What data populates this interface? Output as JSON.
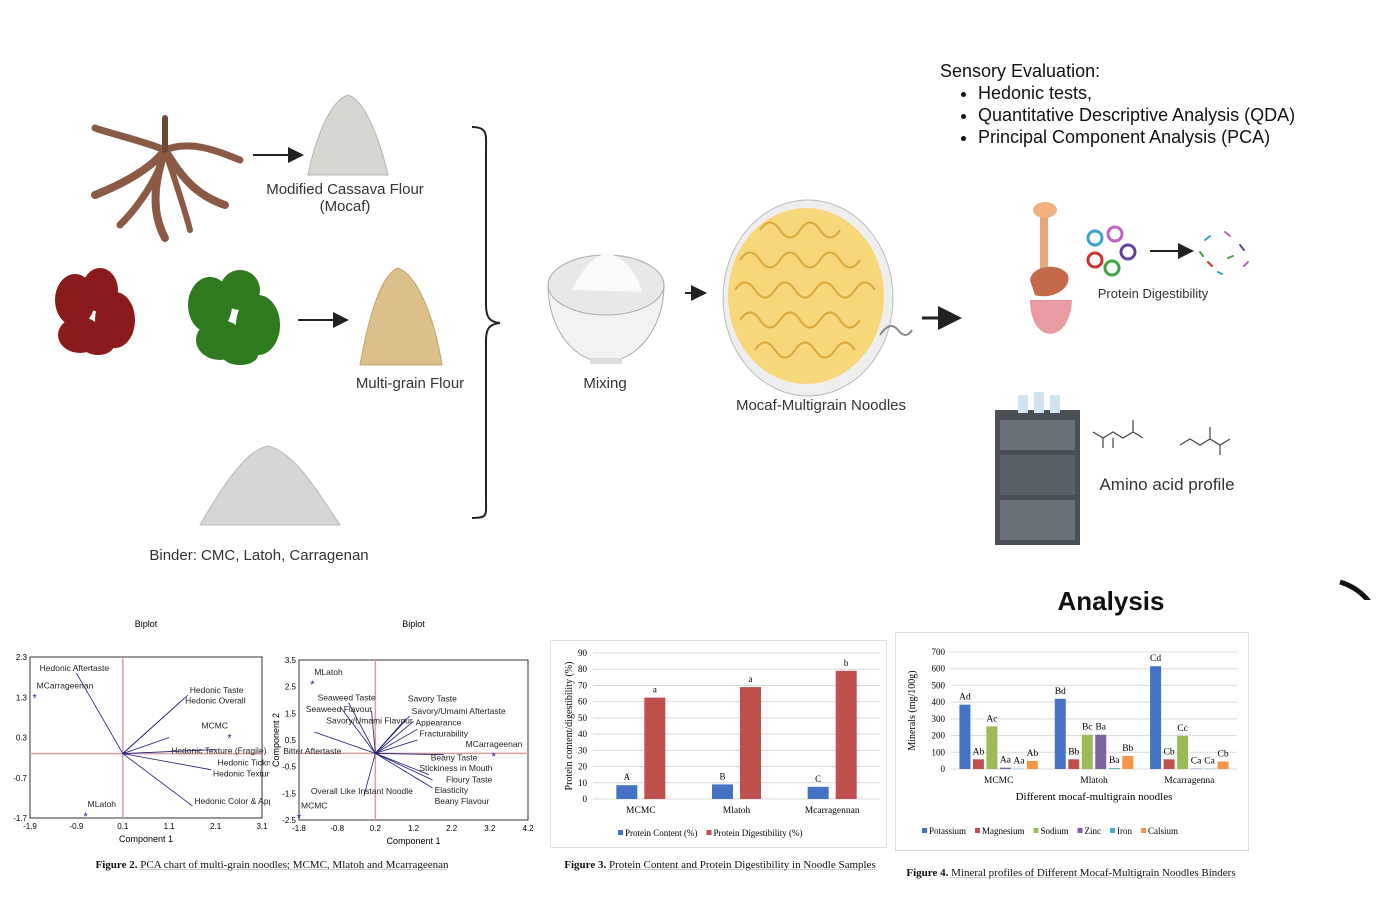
{
  "flow": {
    "mocaf_label_1": "Modified Cassava Flour",
    "mocaf_label_2": "(Mocaf)",
    "multigrain_label": "Multi-grain Flour",
    "binder_label": "Binder: CMC, Latoh, Carragenan",
    "mixing_label": "Mixing",
    "noodles_label": "Mocaf-Multigrain Noodles"
  },
  "sensory": {
    "title": "Sensory Evaluation:",
    "items": [
      "Hedonic tests,",
      "Quantitative Descriptive Analysis (QDA)",
      "Principal Component Analysis (PCA)"
    ]
  },
  "analysis_methods": {
    "protein_label": "Protein Digestibility",
    "amino_label": "Amino acid profile",
    "heading": "Analysis"
  },
  "colors": {
    "blue": "#4472c4",
    "red": "#c0504d",
    "green": "#9bbb59",
    "purple": "#8064a2",
    "teal": "#4bacc6",
    "orange": "#f79646",
    "pca_vector": "#1a1a7a",
    "pca_axis": "#d9a0a0"
  },
  "captions": {
    "fig2_label": "Figure 2.",
    "fig2_text": "PCA chart of multi-grain noodles; MCMC, Mlatoh and Mcarrageenan",
    "fig3_label": "Figure 3.",
    "fig3_text": "Protein Content and Protein Digestibility in Noodle Samples",
    "fig4_label": "Figure 4.",
    "fig4_text": "Mineral profiles of Different Mocaf-Multigrain Noodles Binders"
  },
  "chart_data": [
    {
      "type": "scatter",
      "title": "Biplot",
      "xlabel": "Component 1",
      "ylabel": "",
      "xlim": [
        -1.9,
        3.1
      ],
      "ylim": [
        -1.7,
        2.3
      ],
      "xticks": [
        "-1.9",
        "-0.9",
        "0.1",
        "1.1",
        "2.1",
        "3.1"
      ],
      "yticks": [
        "-1.7",
        "-0.7",
        "0.3",
        "1.3",
        "2.3"
      ],
      "origin": [
        0.1,
        -0.1
      ],
      "points": [
        {
          "label": "MCarrageenan",
          "x": -1.8,
          "y": 1.3
        },
        {
          "label": "MLatoh",
          "x": -0.7,
          "y": -1.65
        },
        {
          "label": "MCMC",
          "x": 2.4,
          "y": 0.3
        }
      ],
      "vectors": [
        {
          "label": "Hedonic Aftertaste",
          "x": -0.9,
          "y": 1.9
        },
        {
          "label": "Hedonic Taste",
          "x": 1.5,
          "y": 1.35
        },
        {
          "label": "Hedonic Overall",
          "x": 1.4,
          "y": 1.25
        },
        {
          "label": "Hedonic Texture (Fragile)",
          "x": 1.1,
          "y": 0.3
        },
        {
          "label": "Hedonic Tickness in Mouth",
          "x": 2.1,
          "y": 0.0
        },
        {
          "label": "Hedonic Texture (Elasticity)",
          "x": 2.0,
          "y": -0.5
        },
        {
          "label": "Hedonic Color & Appearance",
          "x": 1.6,
          "y": -1.4
        }
      ]
    },
    {
      "type": "scatter",
      "title": "Biplot",
      "xlabel": "Component 1",
      "ylabel": "Component 2",
      "xlim": [
        -1.8,
        4.2
      ],
      "ylim": [
        -2.5,
        3.5
      ],
      "xticks": [
        "-1.8",
        "-0.8",
        "0.2",
        "1.2",
        "2.2",
        "3.2",
        "4.2"
      ],
      "yticks": [
        "-2.5",
        "-1.5",
        "-0.5",
        "0.5",
        "1.5",
        "2.5",
        "3.5"
      ],
      "origin": [
        0.2,
        0.0
      ],
      "points": [
        {
          "label": "MLatoh",
          "x": -1.45,
          "y": 2.6
        },
        {
          "label": "MCMC",
          "x": -1.8,
          "y": -2.4
        },
        {
          "label": "MCarrageenan",
          "x": 3.3,
          "y": -0.1
        }
      ],
      "vectors": [
        {
          "label": "Seaweed Taste",
          "x": -0.5,
          "y": 1.9
        },
        {
          "label": "Seaweed Flavour",
          "x": -0.7,
          "y": 1.7
        },
        {
          "label": "Savory/Umami Flavour",
          "x": 0.1,
          "y": 1.6
        },
        {
          "label": "Savory/Umami Aftertaste",
          "x": 1.1,
          "y": 1.4
        },
        {
          "label": "Savory Taste",
          "x": 1.0,
          "y": 1.3
        },
        {
          "label": "Appearance",
          "x": 1.2,
          "y": 1.2
        },
        {
          "label": "Bitter Aftertaste",
          "x": -1.4,
          "y": 0.8
        },
        {
          "label": "Fracturability",
          "x": 1.3,
          "y": 0.9
        },
        {
          "label": "Stickiness in Mouth",
          "x": 1.3,
          "y": 0.5
        },
        {
          "label": "Floury Taste",
          "x": 2.0,
          "y": -0.05
        },
        {
          "label": "Beany Taste",
          "x": 1.6,
          "y": -0.8
        },
        {
          "label": "Elasticity",
          "x": 1.7,
          "y": -1.0
        },
        {
          "label": "Beany Flavour",
          "x": 1.7,
          "y": -1.3
        },
        {
          "label": "Overall Like Instant Noodle",
          "x": -0.1,
          "y": -1.6
        }
      ]
    },
    {
      "type": "bar",
      "title": "",
      "xlabel": "",
      "ylabel": "Protein content/digestibility (%)",
      "ylim": [
        0,
        90
      ],
      "yticks": [
        "0",
        "10",
        "20",
        "30",
        "40",
        "50",
        "60",
        "70",
        "80",
        "90"
      ],
      "categories": [
        "MCMC",
        "Mlatoh",
        "Mcarragennan"
      ],
      "legend": "bottom",
      "series": [
        {
          "name": "Protein Content (%)",
          "color": "#4472c4",
          "values": [
            8.5,
            9.0,
            7.5
          ],
          "labels": [
            "A",
            "B",
            "C"
          ]
        },
        {
          "name": "Protein Digestibility (%)",
          "color": "#c0504d",
          "values": [
            62.5,
            69.0,
            79.0
          ],
          "labels": [
            "a",
            "a",
            "b"
          ]
        }
      ]
    },
    {
      "type": "bar",
      "title": "",
      "xlabel": "Different mocaf-multigrain noodles",
      "ylabel": "Minerals (mg/100g)",
      "ylim": [
        0,
        700
      ],
      "yticks": [
        "0",
        "100",
        "200",
        "300",
        "400",
        "500",
        "600",
        "700"
      ],
      "categories": [
        "MCMC",
        "Mlatoh",
        "Mcarragenna"
      ],
      "legend": "bottom",
      "series": [
        {
          "name": "Potassium",
          "color": "#4472c4",
          "values": [
            385,
            420,
            615
          ],
          "labels": [
            "Ad",
            "Bd",
            "Cd"
          ]
        },
        {
          "name": "Magnesium",
          "color": "#c0504d",
          "values": [
            58,
            58,
            58
          ],
          "labels": [
            "Ab",
            "Bb",
            "Cb"
          ]
        },
        {
          "name": "Sodium",
          "color": "#9bbb59",
          "values": [
            255,
            205,
            198
          ],
          "labels": [
            "Ac",
            "Bc",
            "Cc"
          ]
        },
        {
          "name": "Zinc",
          "color": "#8064a2",
          "values": [
            8,
            205,
            2
          ],
          "labels": [
            "Aa",
            "Ba",
            "Ca"
          ]
        },
        {
          "name": "Iron",
          "color": "#4bacc6",
          "values": [
            2,
            5,
            2
          ],
          "labels": [
            "Aa",
            "Ba",
            "Ca"
          ]
        },
        {
          "name": "Calsium",
          "color": "#f79646",
          "values": [
            48,
            78,
            45
          ],
          "labels": [
            "Ab",
            "Bb",
            "Cb"
          ]
        }
      ]
    }
  ]
}
